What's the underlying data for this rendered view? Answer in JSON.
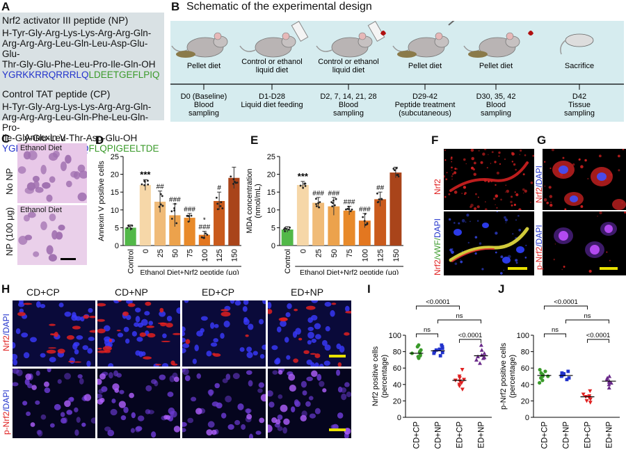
{
  "panels": {
    "A": {
      "label": "A",
      "np_title": "Nrf2 activator III peptide (NP)",
      "np_seq": [
        "H-Tyr-Gly-Arg-Lys-Lys-Arg-Arg-Gln-",
        "Arg-Arg-Arg-Leu-Gln-Leu-Asp-Glu-Glu-",
        "Thr-Gly-Glu-Phe-Leu-Pro-Ile-Gln-OH"
      ],
      "np_code_blue": "YGRKKRRQRRRLQ",
      "np_code_green": "LDEETGEFLPIQ",
      "cp_title": "Control TAT peptide (CP)",
      "cp_seq": [
        "H-Tyr-Gly-Arg-Lys-Lys-Arg-Arg-Gln-",
        "Arg-Arg-Arg-Leu-Gln-Phe-Leu-Gln-Pro-",
        "Ile-Gly-Glu-Leu-Thr-Asp-Glu-OH"
      ],
      "cp_code_blue": "YGRKKRRQRRRLQ",
      "cp_code_green": "FLQPIGEELTDE"
    },
    "B": {
      "label": "B",
      "title": "Schematic of the experimental design",
      "stages": [
        {
          "top": "Pellet diet",
          "bottom": [
            "D0 (Baseline)",
            "Blood",
            "sampling"
          ]
        },
        {
          "top": "Control or ethanol\nliquid diet",
          "bottom": [
            "D1-D28",
            "Liquid diet feeding"
          ]
        },
        {
          "top": "Control or ethanol\nliquid diet",
          "bottom": [
            "D2, 7, 14, 21, 28",
            "Blood",
            "sampling"
          ]
        },
        {
          "top": "Pellet diet",
          "bottom": [
            "D29-42",
            "Peptide treatment",
            "(subcutaneous)"
          ]
        },
        {
          "top": "Pellet diet",
          "bottom": [
            "D30, 35, 42",
            "Blood",
            "sampling"
          ]
        },
        {
          "top": "Sacrifice",
          "bottom": [
            "D42",
            "Tissue",
            "sampling"
          ]
        }
      ]
    },
    "C": {
      "label": "C",
      "title": "Annexin V",
      "img_label": "Ethanol Diet",
      "row1": "No NP",
      "row2": "NP (100 μg)"
    },
    "F": {
      "label": "F",
      "top_stain": "Nrf2",
      "bottom_stain_a": "Nrf2",
      "bottom_stain_b": "/vWF/",
      "bottom_stain_c": "DAPI"
    },
    "G": {
      "label": "G",
      "top_stain_a": "Nrf2",
      "top_stain_b": "/DAPI",
      "bottom_stain_a": "p-Nrf2",
      "bottom_stain_b": "/DAPI"
    },
    "H": {
      "label": "H",
      "groups": [
        "CD+CP",
        "CD+NP",
        "ED+CP",
        "ED+NP"
      ],
      "row1_a": "Nrf2",
      "row1_b": "/DAPI",
      "row2_a": "p-Nrf2",
      "row2_b": "/DAPI"
    }
  },
  "chart_data": [
    {
      "panel": "D",
      "type": "bar",
      "ylabel": "Annexin V positive cells",
      "xlabel": "Ethanol Diet+Nrf2 peptide (μg)",
      "ylim": [
        0,
        25
      ],
      "yticks": [
        0,
        5,
        10,
        15,
        20,
        25
      ],
      "categories": [
        "Control",
        "0",
        "25",
        "50",
        "75",
        "100",
        "125",
        "150"
      ],
      "values": [
        5,
        17,
        12.3,
        8.5,
        7.8,
        3,
        12.5,
        19
      ],
      "errors": [
        0.8,
        1.5,
        3.0,
        3.2,
        1.2,
        1.0,
        2.5,
        3.0
      ],
      "annotations": [
        "",
        "***",
        "##",
        "###",
        "###",
        "*\n###",
        "#",
        ""
      ],
      "colors": [
        "#52b848",
        "#f6d7a8",
        "#f0bb78",
        "#eca24c",
        "#e88a2a",
        "#e37720",
        "#c95a1c",
        "#a9441a"
      ]
    },
    {
      "panel": "E",
      "type": "bar",
      "ylabel": "MDA concentration\n(nmol/mL)",
      "xlabel": "Ethanol Diet+Nrf2 peptide (μg)",
      "ylim": [
        0,
        25
      ],
      "yticks": [
        0,
        5,
        10,
        15,
        20,
        25
      ],
      "categories": [
        "Control",
        "0",
        "25",
        "50",
        "75",
        "100",
        "125",
        "150"
      ],
      "values": [
        4.5,
        17,
        12,
        11,
        9.8,
        7,
        13,
        20.5
      ],
      "errors": [
        0.8,
        1.0,
        1.5,
        2.5,
        1.2,
        2.0,
        2.0,
        1.5
      ],
      "annotations": [
        "",
        "***",
        "###",
        "###",
        "###",
        "###",
        "##",
        ""
      ],
      "colors": [
        "#52b848",
        "#f6d7a8",
        "#f0bb78",
        "#eca24c",
        "#e88a2a",
        "#e37720",
        "#c95a1c",
        "#a9441a"
      ]
    },
    {
      "panel": "I",
      "type": "scatter",
      "ylabel": "Nrf2 positive cells\n(percentage)",
      "ylim": [
        0,
        100
      ],
      "yticks": [
        0,
        20,
        40,
        60,
        80,
        100
      ],
      "categories": [
        "CD+CP",
        "CD+NP",
        "ED+CP",
        "ED+NP"
      ],
      "colors": [
        "#3a9a2a",
        "#2233cc",
        "#e02020",
        "#6a2a8a"
      ],
      "means": [
        78,
        81,
        45,
        75
      ],
      "points": [
        [
          72,
          74,
          76,
          78,
          80,
          82,
          86,
          88,
          75,
          79
        ],
        [
          75,
          78,
          80,
          82,
          84,
          86,
          88,
          79,
          83
        ],
        [
          34,
          38,
          42,
          44,
          46,
          48,
          50,
          58,
          40,
          45
        ],
        [
          66,
          70,
          72,
          74,
          76,
          78,
          82,
          88,
          73
        ]
      ],
      "comparisons": [
        {
          "from": 0,
          "to": 2,
          "label": "<0.0001",
          "level": 3
        },
        {
          "from": 1,
          "to": 3,
          "label": "ns",
          "level": 2
        },
        {
          "from": 0,
          "to": 1,
          "label": "ns",
          "level": 1
        },
        {
          "from": 2,
          "to": 3,
          "label": "<0.0001",
          "level": 1
        }
      ]
    },
    {
      "panel": "J",
      "type": "scatter",
      "ylabel": "p-Nrf2 positive cells\n(percentage)",
      "ylim": [
        0,
        100
      ],
      "yticks": [
        0,
        20,
        40,
        60,
        80,
        100
      ],
      "categories": [
        "CD+CP",
        "CD+NP",
        "ED+CP",
        "ED+NP"
      ],
      "colors": [
        "#3a9a2a",
        "#2233cc",
        "#e02020",
        "#6a2a8a"
      ],
      "means": [
        51,
        51,
        25,
        44
      ],
      "points": [
        [
          42,
          45,
          48,
          50,
          52,
          54,
          56,
          58,
          50
        ],
        [
          46,
          48,
          50,
          52,
          54,
          56,
          51,
          53
        ],
        [
          18,
          20,
          22,
          24,
          26,
          28,
          32,
          25
        ],
        [
          36,
          40,
          42,
          44,
          46,
          48,
          50,
          43
        ]
      ],
      "comparisons": [
        {
          "from": 0,
          "to": 2,
          "label": "<0.0001",
          "level": 3
        },
        {
          "from": 1,
          "to": 3,
          "label": "ns",
          "level": 2
        },
        {
          "from": 0,
          "to": 1,
          "label": "ns",
          "level": 1
        },
        {
          "from": 2,
          "to": 3,
          "label": "<0.0001",
          "level": 1
        }
      ]
    }
  ]
}
